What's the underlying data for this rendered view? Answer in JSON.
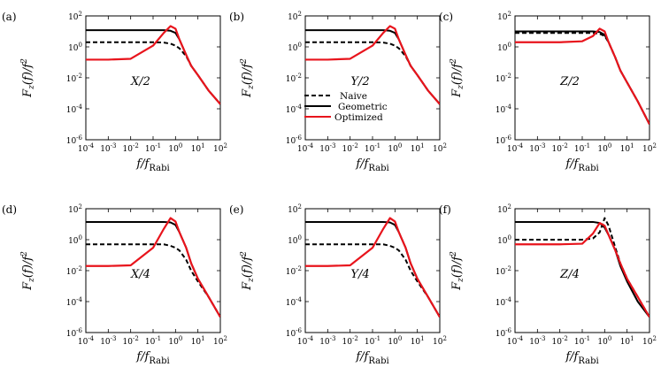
{
  "chart_data": [
    {
      "type": "line",
      "panel": "(a)",
      "title": "X/2",
      "xlabel": "f/f_Rabi",
      "ylabel": "F_z(f)/f^2",
      "xscale": "log",
      "yscale": "log",
      "xlim": [
        0.0001,
        100
      ],
      "ylim": [
        1e-06,
        100
      ],
      "xticks": [
        "10^-4",
        "10^-3",
        "10^-2",
        "10^-1",
        "10^0",
        "10^1",
        "10^2"
      ],
      "yticks": [
        "10^-6",
        "10^-4",
        "10^-2",
        "10^0",
        "10^2"
      ],
      "x": [
        0.0001,
        0.001,
        0.01,
        0.1,
        0.3,
        0.6,
        1,
        1.5,
        3,
        5,
        10,
        30,
        100
      ],
      "series": [
        {
          "name": "Naive",
          "style": "dashed",
          "color": "#000000",
          "values": [
            2,
            2,
            2,
            2,
            1.9,
            1.6,
            1.2,
            0.8,
            0.25,
            0.06,
            0.015,
            0.0015,
            0.0002
          ]
        },
        {
          "name": "Geometric",
          "style": "solid",
          "color": "#000000",
          "values": [
            12,
            12,
            12,
            12,
            12,
            11,
            8,
            3,
            0.3,
            0.06,
            0.015,
            0.0015,
            0.0002
          ]
        },
        {
          "name": "Optimized",
          "style": "solid",
          "color": "#e8141c",
          "values": [
            0.15,
            0.15,
            0.17,
            1.2,
            8,
            22,
            15,
            3,
            0.3,
            0.06,
            0.015,
            0.0015,
            0.0002
          ]
        }
      ]
    },
    {
      "type": "line",
      "panel": "(b)",
      "title": "Y/2",
      "xlabel": "f/f_Rabi",
      "ylabel": "F_z(f)/f^2",
      "xscale": "log",
      "yscale": "log",
      "xlim": [
        0.0001,
        100
      ],
      "ylim": [
        1e-06,
        100
      ],
      "xticks": [
        "10^-4",
        "10^-3",
        "10^-2",
        "10^-1",
        "10^0",
        "10^1",
        "10^2"
      ],
      "yticks": [
        "10^-6",
        "10^-4",
        "10^-2",
        "10^0",
        "10^2"
      ],
      "x": [
        0.0001,
        0.001,
        0.01,
        0.1,
        0.3,
        0.6,
        1,
        1.5,
        3,
        5,
        10,
        30,
        100
      ],
      "series": [
        {
          "name": "Naive",
          "style": "dashed",
          "color": "#000000",
          "values": [
            2,
            2,
            2,
            2,
            1.9,
            1.6,
            1.2,
            0.8,
            0.25,
            0.06,
            0.015,
            0.0015,
            0.0002
          ]
        },
        {
          "name": "Geometric",
          "style": "solid",
          "color": "#000000",
          "values": [
            12,
            12,
            12,
            12,
            12,
            11,
            8,
            3,
            0.3,
            0.06,
            0.015,
            0.0015,
            0.0002
          ]
        },
        {
          "name": "Optimized",
          "style": "solid",
          "color": "#e8141c",
          "values": [
            0.15,
            0.15,
            0.17,
            1.2,
            8,
            22,
            15,
            3,
            0.3,
            0.06,
            0.015,
            0.0015,
            0.0002
          ]
        }
      ]
    },
    {
      "type": "line",
      "panel": "(c)",
      "title": "Z/2",
      "xlabel": "f/f_Rabi",
      "ylabel": "F_z(f)/f^2",
      "xscale": "log",
      "yscale": "log",
      "xlim": [
        0.0001,
        100
      ],
      "ylim": [
        1e-06,
        100
      ],
      "xticks": [
        "10^-4",
        "10^-3",
        "10^-2",
        "10^-1",
        "10^0",
        "10^1",
        "10^2"
      ],
      "yticks": [
        "10^-6",
        "10^-4",
        "10^-2",
        "10^0",
        "10^2"
      ],
      "x": [
        0.0001,
        0.001,
        0.01,
        0.1,
        0.3,
        0.6,
        1,
        1.5,
        3,
        5,
        10,
        30,
        100
      ],
      "series": [
        {
          "name": "Naive",
          "style": "dashed",
          "color": "#000000",
          "values": [
            8,
            8,
            8,
            8,
            8,
            7,
            5,
            2,
            0.2,
            0.03,
            0.005,
            0.0003,
            1e-05
          ]
        },
        {
          "name": "Geometric",
          "style": "solid",
          "color": "#000000",
          "values": [
            10,
            10,
            10,
            10,
            10,
            9,
            6,
            2,
            0.2,
            0.03,
            0.005,
            0.0003,
            1e-05
          ]
        },
        {
          "name": "Optimized",
          "style": "solid",
          "color": "#e8141c",
          "values": [
            2,
            2,
            2,
            2.3,
            5,
            15,
            10,
            2,
            0.2,
            0.03,
            0.005,
            0.0003,
            1e-05
          ]
        }
      ]
    },
    {
      "type": "line",
      "panel": "(d)",
      "title": "X/4",
      "xlabel": "f/f_Rabi",
      "ylabel": "F_z(f)/f^2",
      "xscale": "log",
      "yscale": "log",
      "xlim": [
        0.0001,
        100
      ],
      "ylim": [
        1e-06,
        100
      ],
      "xticks": [
        "10^-4",
        "10^-3",
        "10^-2",
        "10^-1",
        "10^0",
        "10^1",
        "10^2"
      ],
      "yticks": [
        "10^-6",
        "10^-4",
        "10^-2",
        "10^0",
        "10^2"
      ],
      "x": [
        0.0001,
        0.001,
        0.01,
        0.1,
        0.3,
        0.6,
        1,
        1.5,
        3,
        5,
        10,
        30,
        100
      ],
      "series": [
        {
          "name": "Naive",
          "style": "dashed",
          "color": "#000000",
          "values": [
            0.5,
            0.5,
            0.5,
            0.5,
            0.5,
            0.4,
            0.3,
            0.2,
            0.05,
            0.01,
            0.002,
            0.0002,
            1e-05
          ]
        },
        {
          "name": "Geometric",
          "style": "solid",
          "color": "#000000",
          "values": [
            14,
            14,
            14,
            14,
            14,
            13,
            9,
            3,
            0.3,
            0.03,
            0.003,
            0.0002,
            1e-05
          ]
        },
        {
          "name": "Optimized",
          "style": "solid",
          "color": "#e8141c",
          "values": [
            0.02,
            0.02,
            0.022,
            0.3,
            5,
            25,
            15,
            3,
            0.3,
            0.03,
            0.003,
            0.0002,
            1e-05
          ]
        }
      ]
    },
    {
      "type": "line",
      "panel": "(e)",
      "title": "Y/4",
      "xlabel": "f/f_Rabi",
      "ylabel": "F_z(f)/f^2",
      "xscale": "log",
      "yscale": "log",
      "xlim": [
        0.0001,
        100
      ],
      "ylim": [
        1e-06,
        100
      ],
      "xticks": [
        "10^-4",
        "10^-3",
        "10^-2",
        "10^-1",
        "10^0",
        "10^1",
        "10^2"
      ],
      "yticks": [
        "10^-6",
        "10^-4",
        "10^-2",
        "10^0",
        "10^2"
      ],
      "x": [
        0.0001,
        0.001,
        0.01,
        0.1,
        0.3,
        0.6,
        1,
        1.5,
        3,
        5,
        10,
        30,
        100
      ],
      "series": [
        {
          "name": "Naive",
          "style": "dashed",
          "color": "#000000",
          "values": [
            0.5,
            0.5,
            0.5,
            0.5,
            0.5,
            0.4,
            0.3,
            0.2,
            0.05,
            0.01,
            0.002,
            0.0002,
            1e-05
          ]
        },
        {
          "name": "Geometric",
          "style": "solid",
          "color": "#000000",
          "values": [
            14,
            14,
            14,
            14,
            14,
            13,
            9,
            3,
            0.3,
            0.03,
            0.003,
            0.0002,
            1e-05
          ]
        },
        {
          "name": "Optimized",
          "style": "solid",
          "color": "#e8141c",
          "values": [
            0.02,
            0.02,
            0.022,
            0.3,
            5,
            25,
            15,
            3,
            0.3,
            0.03,
            0.003,
            0.0002,
            1e-05
          ]
        }
      ]
    },
    {
      "type": "line",
      "panel": "(f)",
      "title": "Z/4",
      "xlabel": "f/f_Rabi",
      "ylabel": "F_z(f)/f^2",
      "xscale": "log",
      "yscale": "log",
      "xlim": [
        0.0001,
        100
      ],
      "ylim": [
        1e-06,
        100
      ],
      "xticks": [
        "10^-4",
        "10^-3",
        "10^-2",
        "10^-1",
        "10^0",
        "10^1",
        "10^2"
      ],
      "yticks": [
        "10^-6",
        "10^-4",
        "10^-2",
        "10^0",
        "10^2"
      ],
      "x": [
        0.0001,
        0.001,
        0.01,
        0.1,
        0.3,
        0.6,
        1,
        1.5,
        3,
        5,
        10,
        30,
        100
      ],
      "series": [
        {
          "name": "Naive",
          "style": "dashed",
          "color": "#000000",
          "values": [
            1,
            1,
            1,
            1,
            1.2,
            3,
            25,
            8,
            0.3,
            0.03,
            0.003,
            0.0002,
            1e-05
          ]
        },
        {
          "name": "Geometric",
          "style": "solid",
          "color": "#000000",
          "values": [
            14,
            14,
            14,
            14,
            14,
            12,
            6,
            2,
            0.2,
            0.02,
            0.002,
            0.0001,
            1e-05
          ]
        },
        {
          "name": "Optimized",
          "style": "solid",
          "color": "#e8141c",
          "values": [
            0.5,
            0.5,
            0.5,
            0.55,
            2.5,
            12,
            8,
            2,
            0.2,
            0.03,
            0.003,
            0.0002,
            1e-05
          ]
        }
      ]
    }
  ],
  "legend": {
    "items": [
      {
        "name": "Naive",
        "style": "dashed",
        "color": "#000000"
      },
      {
        "name": "Geometric",
        "style": "solid",
        "color": "#000000"
      },
      {
        "name": "Optimized",
        "style": "solid",
        "color": "#e8141c"
      }
    ]
  }
}
